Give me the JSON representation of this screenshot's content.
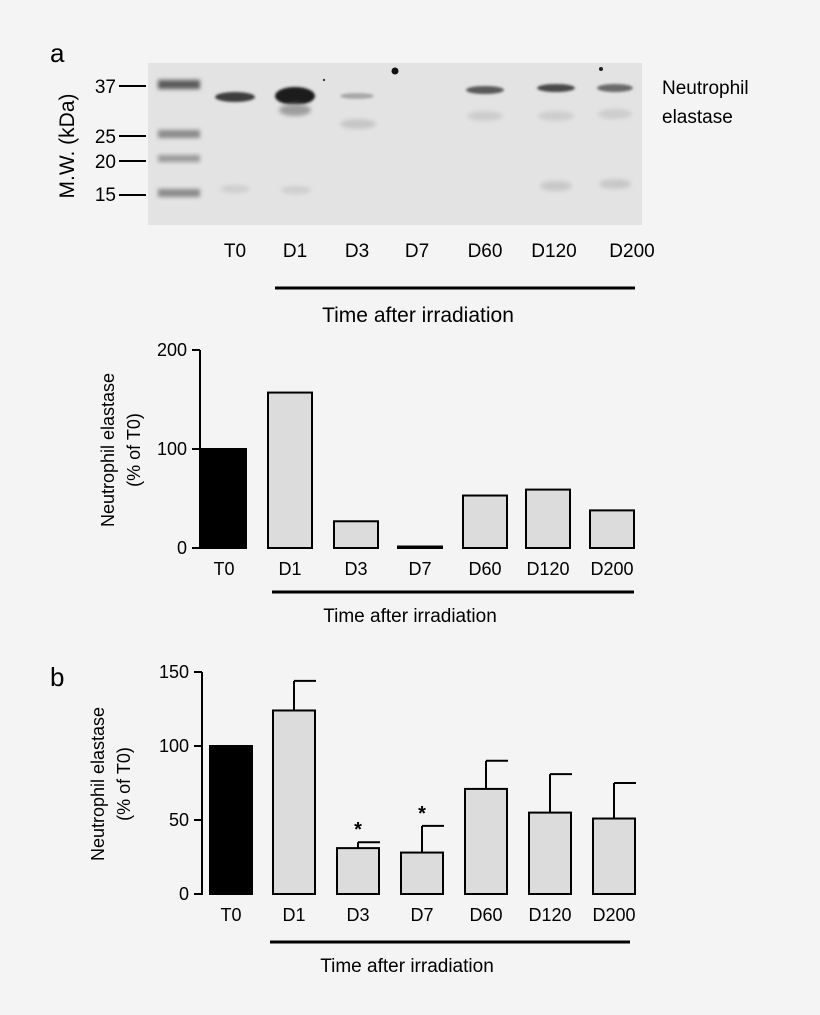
{
  "panel_a_label": "a",
  "panel_b_label": "b",
  "blot": {
    "ylabel": "M.W. (kDa)",
    "markers": [
      "37",
      "25",
      "20",
      "15"
    ],
    "band_label_line1": "Neutrophil",
    "band_label_line2": "elastase",
    "lanes": [
      "T0",
      "D1",
      "D3",
      "D7",
      "D60",
      "D120",
      "D200"
    ],
    "xgroup_label": "Time after irradiation"
  },
  "chart_data": [
    {
      "type": "bar",
      "categories": [
        "T0",
        "D1",
        "D3",
        "D7",
        "D60",
        "D120",
        "D200"
      ],
      "values": [
        100,
        157,
        27,
        1,
        53,
        59,
        38
      ],
      "ylabel_line1": "Neutrophil elastase",
      "ylabel_line2": "(% of T0)",
      "xlabel": "Time after irradiation",
      "ylim": [
        0,
        200
      ],
      "yticks": [
        0,
        100,
        200
      ],
      "bar_colors": [
        "#000000",
        "#dcdcdc",
        "#dcdcdc",
        "#dcdcdc",
        "#dcdcdc",
        "#dcdcdc",
        "#dcdcdc"
      ],
      "grid": false
    },
    {
      "type": "bar",
      "categories": [
        "T0",
        "D1",
        "D3",
        "D7",
        "D60",
        "D120",
        "D200"
      ],
      "values": [
        100,
        124,
        31,
        28,
        71,
        55,
        51
      ],
      "errors": [
        0,
        20,
        4,
        18,
        19,
        26,
        24
      ],
      "significance": [
        "",
        "",
        "*",
        "*",
        "",
        "",
        ""
      ],
      "ylabel_line1": "Neutrophil elastase",
      "ylabel_line2": "(% of T0)",
      "xlabel": "Time after irradiation",
      "ylim": [
        0,
        150
      ],
      "yticks": [
        0,
        50,
        100,
        150
      ],
      "bar_colors": [
        "#000000",
        "#dcdcdc",
        "#dcdcdc",
        "#dcdcdc",
        "#dcdcdc",
        "#dcdcdc",
        "#dcdcdc"
      ],
      "grid": false
    }
  ]
}
